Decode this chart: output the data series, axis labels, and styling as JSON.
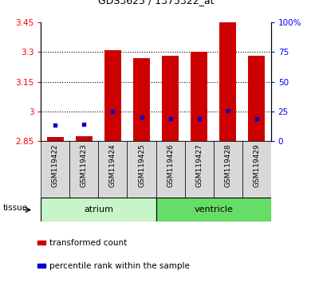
{
  "title": "GDS3625 / 1375322_at",
  "samples": [
    "GSM119422",
    "GSM119423",
    "GSM119424",
    "GSM119425",
    "GSM119426",
    "GSM119427",
    "GSM119428",
    "GSM119429"
  ],
  "red_values": [
    2.87,
    2.875,
    3.31,
    3.27,
    3.28,
    3.3,
    3.45,
    3.28
  ],
  "blue_values": [
    2.93,
    2.935,
    3.0,
    2.97,
    2.965,
    2.965,
    3.005,
    2.965
  ],
  "baseline": 2.85,
  "ylim_left": [
    2.85,
    3.45
  ],
  "ylim_right": [
    0,
    100
  ],
  "yticks_left": [
    2.85,
    3.0,
    3.15,
    3.3,
    3.45
  ],
  "yticks_right": [
    0,
    25,
    50,
    75,
    100
  ],
  "ytick_labels_left": [
    "2.85",
    "3",
    "3.15",
    "3.3",
    "3.45"
  ],
  "ytick_labels_right": [
    "0",
    "25",
    "50",
    "75",
    "100%"
  ],
  "gridlines": [
    3.0,
    3.15,
    3.3
  ],
  "tissue_groups": [
    {
      "label": "atrium",
      "start": 0,
      "end": 4,
      "color": "#c8f5c8"
    },
    {
      "label": "ventricle",
      "start": 4,
      "end": 8,
      "color": "#66dd66"
    }
  ],
  "bar_color": "#cc0000",
  "blue_color": "#0000cc",
  "bar_width": 0.6,
  "sample_box_color": "#d8d8d8",
  "legend_items": [
    {
      "color": "#cc0000",
      "label": "transformed count"
    },
    {
      "color": "#0000cc",
      "label": "percentile rank within the sample"
    }
  ]
}
